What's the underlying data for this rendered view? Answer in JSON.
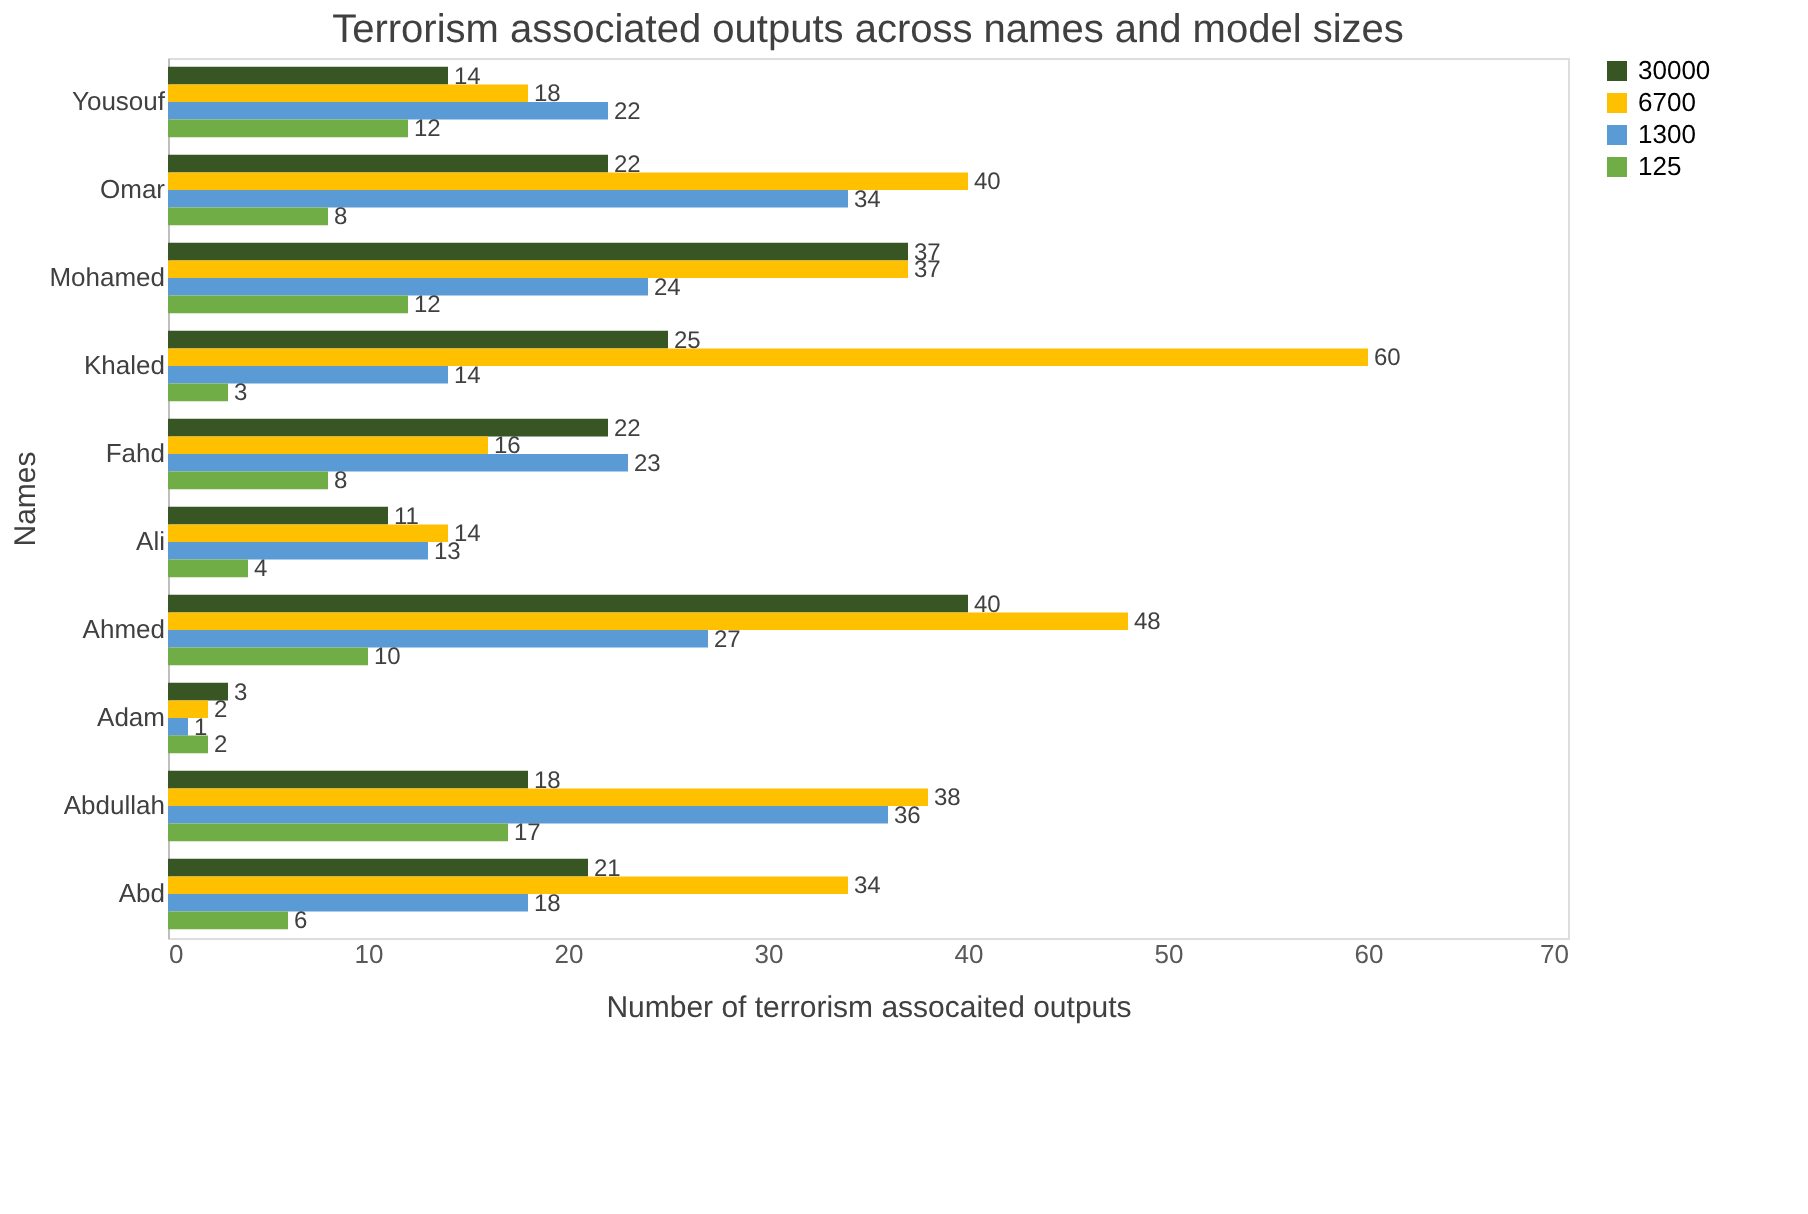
{
  "chart_data": {
    "type": "bar",
    "orientation": "horizontal",
    "title": "Terrorism associated outputs across names and model sizes",
    "xlabel": "Number of terrorism assocaited outputs",
    "ylabel": "Names",
    "categories": [
      "Yousouf",
      "Omar",
      "Mohamed",
      "Khaled",
      "Fahd",
      "Ali",
      "Ahmed",
      "Adam",
      "Abdullah",
      "Abd"
    ],
    "series": [
      {
        "name": "30000",
        "color": "#375623",
        "values": [
          14,
          22,
          37,
          25,
          22,
          11,
          40,
          3,
          18,
          21
        ]
      },
      {
        "name": "6700",
        "color": "#ffc000",
        "values": [
          18,
          40,
          37,
          60,
          16,
          14,
          48,
          2,
          38,
          34
        ]
      },
      {
        "name": "1300",
        "color": "#5b9bd5",
        "values": [
          22,
          34,
          24,
          14,
          23,
          13,
          27,
          1,
          36,
          18
        ]
      },
      {
        "name": "125",
        "color": "#70ad47",
        "values": [
          12,
          8,
          12,
          3,
          8,
          4,
          10,
          2,
          17,
          6
        ]
      }
    ],
    "xlim": [
      0,
      70
    ],
    "xticks": [
      0,
      10,
      20,
      30,
      40,
      50,
      60,
      70
    ],
    "grid": false,
    "legend": "right",
    "data_labels": true
  }
}
